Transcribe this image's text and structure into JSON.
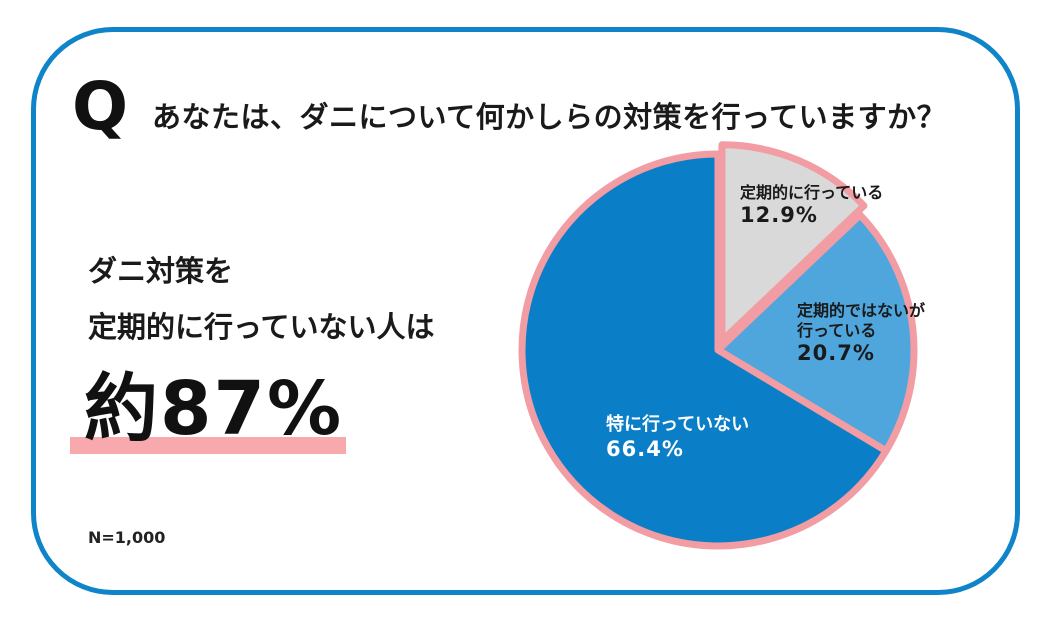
{
  "question": {
    "mark": "Q",
    "text": "あなたは、ダニについて何かしらの対策を行っていますか？"
  },
  "headline": {
    "line1": "ダニ対策を",
    "line2": "定期的に行っていない人は",
    "big": "約87%"
  },
  "sample": "N=1,000",
  "colors": {
    "frame": "#0f84c8",
    "highlight": "#f7a9ad",
    "regular": "#d9d9d9",
    "irregular": "#4ea6dd",
    "none": "#0a7fc7",
    "pie_border": "#f29ca3"
  },
  "chart_data": {
    "type": "pie",
    "slices": [
      {
        "label_lines": [
          "定期的に行っている"
        ],
        "value": 12.9,
        "value_label": "12.9%",
        "color": "#d9d9d9",
        "exploded": true
      },
      {
        "label_lines": [
          "定期的ではないが",
          "行っている"
        ],
        "value": 20.7,
        "value_label": "20.7%",
        "color": "#4ea6dd",
        "exploded": false
      },
      {
        "label_lines": [
          "特に行っていない"
        ],
        "value": 66.4,
        "value_label": "66.4%",
        "color": "#0a7fc7",
        "exploded": false
      }
    ]
  }
}
